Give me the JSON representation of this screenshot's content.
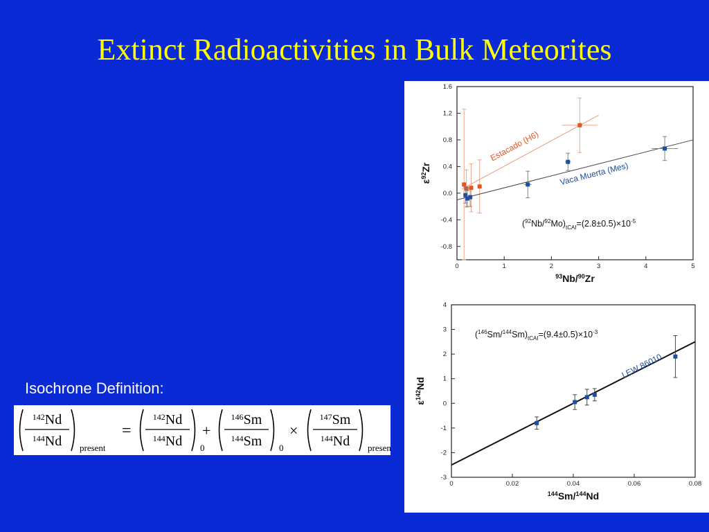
{
  "slide": {
    "title": "Extinct Radioactivities in Bulk Meteorites",
    "isochrone_label": "Isochrone Definition:",
    "background_color": "#0a2ad6",
    "title_color": "#ffff00"
  },
  "equation": {
    "lhs": {
      "num_mass": "142",
      "num_el": "Nd",
      "den_mass": "144",
      "den_el": "Nd",
      "subscript": "present"
    },
    "term1": {
      "num_mass": "142",
      "num_el": "Nd",
      "den_mass": "144",
      "den_el": "Nd",
      "subscript": "0"
    },
    "term2": {
      "num_mass": "146",
      "num_el": "Sm",
      "den_mass": "144",
      "den_el": "Sm",
      "subscript": "0"
    },
    "term3": {
      "num_mass": "147",
      "num_el": "Sm",
      "den_mass": "144",
      "den_el": "Nd",
      "subscript": "present"
    },
    "op_equals": "=",
    "op_plus": "+",
    "op_times": "×"
  },
  "chart_data": [
    {
      "type": "scatter",
      "xlabel_parts": [
        "93",
        "Nb/",
        "90",
        "Zr"
      ],
      "ylabel_parts": [
        "ε",
        "92",
        "Zr"
      ],
      "xlim": [
        0,
        5
      ],
      "ylim": [
        -1.0,
        1.6
      ],
      "x_ticks": [
        0,
        1,
        2,
        3,
        4,
        5
      ],
      "x_tick_labels": [
        "0",
        "1",
        "2",
        "3",
        "4",
        "5"
      ],
      "y_ticks": [
        1.6,
        1.2,
        0.8,
        0.4,
        0.0,
        -0.4,
        -0.8
      ],
      "y_tick_labels": [
        "1.6",
        "1.2",
        "0.8",
        "0.4",
        "0.0",
        "-0.4",
        "-0.8"
      ],
      "annotation_parts": [
        "(",
        "92",
        "Nb/",
        "92",
        "Mo)",
        "tCAI",
        "=(2.8±0.5)×10",
        "-5"
      ],
      "series": [
        {
          "name": "Estacado (H6)",
          "color": "#e8541e",
          "line": [
            [
              0.1,
              0.06
            ],
            [
              3.0,
              1.17
            ]
          ],
          "points": [
            {
              "x": 0.15,
              "y": 0.13,
              "yerr": 1.13,
              "xerr": 0.02
            },
            {
              "x": 0.2,
              "y": 0.07,
              "yerr": 0.28,
              "xerr": 0.02
            },
            {
              "x": 0.3,
              "y": 0.08,
              "yerr": 0.36,
              "xerr": 0.02
            },
            {
              "x": 0.48,
              "y": 0.1,
              "yerr": 0.4,
              "xerr": 0.03
            },
            {
              "x": 2.6,
              "y": 1.02,
              "yerr": 0.41,
              "xerr": 0.38
            }
          ]
        },
        {
          "name": "Vaca Muerta (Mes)",
          "color": "#1c4fa0",
          "line": [
            [
              0,
              -0.1
            ],
            [
              5,
              0.8
            ]
          ],
          "points": [
            {
              "x": 0.18,
              "y": -0.03,
              "yerr": 0.12,
              "xerr": 0.02
            },
            {
              "x": 0.22,
              "y": -0.08,
              "yerr": 0.12,
              "xerr": 0.02
            },
            {
              "x": 0.28,
              "y": -0.06,
              "yerr": 0.14,
              "xerr": 0.02
            },
            {
              "x": 1.5,
              "y": 0.13,
              "yerr": 0.2,
              "xerr": 0.08
            },
            {
              "x": 2.35,
              "y": 0.47,
              "yerr": 0.13,
              "xerr": 0.06
            },
            {
              "x": 4.4,
              "y": 0.67,
              "yerr": 0.18,
              "xerr": 0.28
            }
          ]
        }
      ]
    },
    {
      "type": "scatter",
      "xlabel_parts": [
        "144",
        "Sm/",
        "144",
        "Nd"
      ],
      "ylabel_parts": [
        "ε",
        "142",
        "Nd"
      ],
      "xlim": [
        0,
        0.08
      ],
      "ylim": [
        -3,
        4
      ],
      "x_ticks": [
        0,
        0.02,
        0.04,
        0.06,
        0.08
      ],
      "x_tick_labels": [
        "0",
        "0.02",
        "0.04",
        "0.06",
        "0.08"
      ],
      "y_ticks": [
        4,
        3,
        2,
        1,
        0,
        -1,
        -2,
        -3
      ],
      "y_tick_labels": [
        "4",
        "3",
        "2",
        "1",
        "0",
        "-1",
        "-2",
        "-3"
      ],
      "annotation_parts": [
        "(",
        "146",
        "Sm/",
        "144",
        "Sm)",
        "tCAI",
        "=(9.4±0.5)×10",
        "-3"
      ],
      "series": [
        {
          "name": "LEW 86010",
          "color": "#1c4fa0",
          "line": [
            [
              0,
              -2.5
            ],
            [
              0.08,
              2.5
            ]
          ],
          "points": [
            {
              "x": 0.028,
              "y": -0.8,
              "yerr": 0.25
            },
            {
              "x": 0.0405,
              "y": 0.05,
              "yerr": 0.3
            },
            {
              "x": 0.0445,
              "y": 0.25,
              "yerr": 0.32
            },
            {
              "x": 0.047,
              "y": 0.35,
              "yerr": 0.25
            },
            {
              "x": 0.0735,
              "y": 1.9,
              "yerr": 0.85
            }
          ]
        }
      ]
    }
  ]
}
